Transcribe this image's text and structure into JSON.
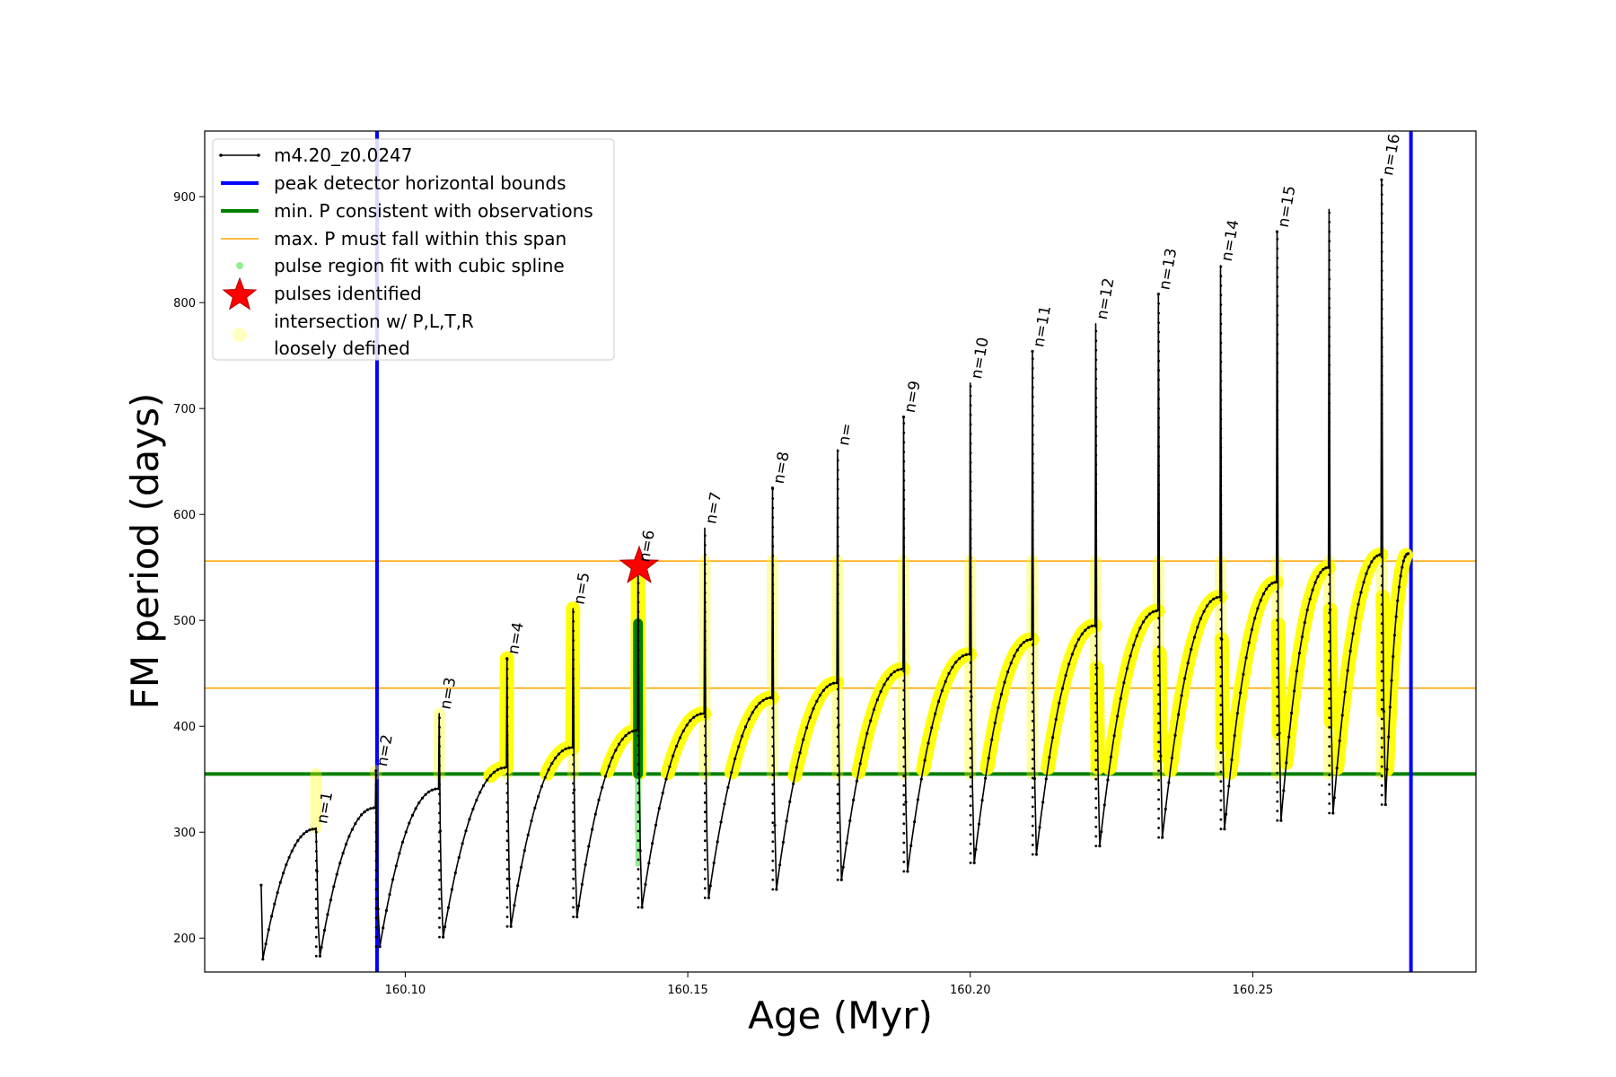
{
  "chart_data": {
    "type": "line",
    "xlabel": "Age (Myr)",
    "ylabel": "FM period (days)",
    "xlim": [
      160.0645,
      160.2895
    ],
    "ylim": [
      168,
      962
    ],
    "x_ticks": [
      160.1,
      160.15,
      160.2,
      160.25
    ],
    "x_tick_labels": [
      "160.10",
      "160.15",
      "160.20",
      "160.25"
    ],
    "y_ticks": [
      200,
      300,
      400,
      500,
      600,
      700,
      800,
      900
    ],
    "y_tick_labels": [
      "200",
      "300",
      "400",
      "500",
      "600",
      "700",
      "800",
      "900"
    ],
    "grid": false,
    "legend_position": "upper-left",
    "colors": {
      "model": "#000000",
      "bounds": "#0000ff",
      "min_p": "#008000",
      "max_p": "#ffa500",
      "spline": "#90ee90",
      "spline_dark": "#008000",
      "star": "#ff0000",
      "intersection": "#ffff00"
    },
    "legend": [
      {
        "label": "m4.20_z0.0247",
        "marker": "line-dot"
      },
      {
        "label": "peak detector horizontal bounds",
        "marker": "blue-line"
      },
      {
        "label": "min. P consistent with observations",
        "marker": "green-line"
      },
      {
        "label": "max. P must fall within this span",
        "marker": "orange-line"
      },
      {
        "label": "pulse region fit with cubic spline",
        "marker": "green-dot"
      },
      {
        "label": "pulses identified",
        "marker": "red-star"
      },
      {
        "label": "intersection w/ P,L,T,R",
        "label2": "loosely defined",
        "marker": "yellow-dot"
      }
    ],
    "bounds_x": [
      160.095,
      160.278
    ],
    "min_p": 355,
    "max_p_span": [
      436,
      556
    ],
    "pulses_identified": [
      {
        "x": 160.1414,
        "y": 551
      }
    ],
    "pulses": [
      {
        "n": "n=1",
        "x": 160.0842,
        "peak": 304,
        "trough": 183,
        "max_before": 303
      },
      {
        "n": "n=2",
        "x": 160.0948,
        "peak": 358,
        "trough": 192,
        "max_before": 323
      },
      {
        "n": "n=3",
        "x": 160.106,
        "peak": 412,
        "trough": 201,
        "max_before": 341
      },
      {
        "n": "n=4",
        "x": 160.118,
        "peak": 464,
        "trough": 211,
        "max_before": 361
      },
      {
        "n": "n=5",
        "x": 160.1297,
        "peak": 511,
        "trough": 220,
        "max_before": 380
      },
      {
        "n": "n=6",
        "x": 160.1412,
        "peak": 551,
        "trough": 229,
        "max_before": 396
      },
      {
        "n": "n=7",
        "x": 160.153,
        "peak": 587,
        "trough": 238,
        "max_before": 412
      },
      {
        "n": "n=8",
        "x": 160.165,
        "peak": 625,
        "trough": 246,
        "max_before": 427
      },
      {
        "n": "n=",
        "x": 160.1765,
        "peak": 661,
        "trough": 255,
        "max_before": 441
      },
      {
        "n": "n=9",
        "x": 160.1882,
        "peak": 692,
        "trough": 263,
        "max_before": 454
      },
      {
        "n": "n=10",
        "x": 160.2,
        "peak": 724,
        "trough": 271,
        "max_before": 468
      },
      {
        "n": "n=11",
        "x": 160.211,
        "peak": 754,
        "trough": 279,
        "max_before": 482
      },
      {
        "n": "n=12",
        "x": 160.2222,
        "peak": 780,
        "trough": 287,
        "max_before": 495
      },
      {
        "n": "n=13",
        "x": 160.2333,
        "peak": 808,
        "trough": 295,
        "max_before": 509
      },
      {
        "n": "n=14",
        "x": 160.2443,
        "peak": 835,
        "trough": 303,
        "max_before": 522
      },
      {
        "n": "n=15",
        "x": 160.2543,
        "peak": 867,
        "trough": 311,
        "max_before": 536
      },
      {
        "n": "",
        "x": 160.2635,
        "peak": 888,
        "trough": 318,
        "max_before": 550
      },
      {
        "n": "n=16",
        "x": 160.2728,
        "peak": 916,
        "trough": 326,
        "max_before": 562
      }
    ],
    "series_start": {
      "x": 160.0745,
      "y": 250,
      "trough": 180
    },
    "series_end": {
      "x": 160.2775,
      "y": 563
    }
  }
}
